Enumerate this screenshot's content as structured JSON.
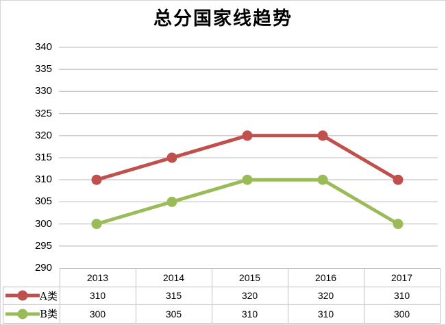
{
  "chart_data": {
    "type": "line",
    "title": "总分国家线趋势",
    "categories": [
      "2013",
      "2014",
      "2015",
      "2016",
      "2017"
    ],
    "series": [
      {
        "name": "A类",
        "color": "#C0504D",
        "values": [
          310,
          315,
          320,
          320,
          310
        ]
      },
      {
        "name": "B类",
        "color": "#9BBB59",
        "values": [
          300,
          305,
          310,
          310,
          300
        ]
      }
    ],
    "xlabel": "",
    "ylabel": "",
    "ylim": [
      290,
      340
    ],
    "ytick_step": 5,
    "yticks": [
      290,
      295,
      300,
      305,
      310,
      315,
      320,
      325,
      330,
      335,
      340
    ],
    "grid": "horizontal",
    "marker": "circle",
    "legend_position": "data-table-left",
    "data_table_shown": true
  },
  "style": {
    "background": "#FFFFFF",
    "chart_border_color": "#D4D4D4",
    "gridline_color": "#C6C6C6",
    "table_border_color": "#BFBFBF",
    "text_color": "#000000"
  }
}
